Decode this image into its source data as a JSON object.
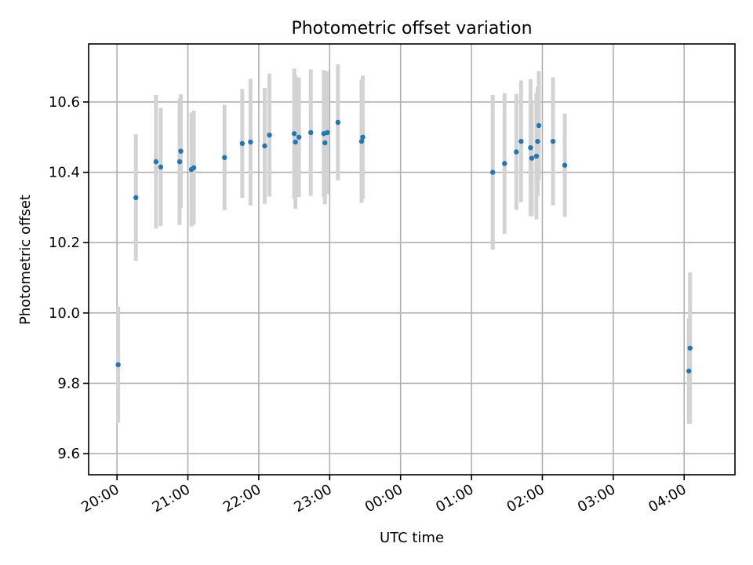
{
  "chart_data": {
    "type": "scatter",
    "title": "Photometric offset variation",
    "xlabel": "UTC time",
    "ylabel": "Photometric offset",
    "x_unit": "UTC hour (hours after 20:00 shown as clock times, wrapping past midnight)",
    "xlim": [
      "19:36",
      "04:43"
    ],
    "ylim": [
      9.54,
      10.765
    ],
    "x_ticks": [
      "20:00",
      "21:00",
      "22:00",
      "23:00",
      "00:00",
      "01:00",
      "02:00",
      "03:00",
      "04:00"
    ],
    "y_ticks": [
      "9.6",
      "9.8",
      "10.0",
      "10.2",
      "10.4",
      "10.6"
    ],
    "grid": true,
    "colors": {
      "points": "#1f77b4",
      "errorbars": "#d3d3d3"
    },
    "points": [
      {
        "t": "20:01",
        "y": 9.853,
        "err": 0.165
      },
      {
        "t": "20:16",
        "y": 10.328,
        "err": 0.18
      },
      {
        "t": "20:33",
        "y": 10.43,
        "err": 0.19
      },
      {
        "t": "20:37",
        "y": 10.415,
        "err": 0.168
      },
      {
        "t": "20:53",
        "y": 10.43,
        "err": 0.18
      },
      {
        "t": "20:54",
        "y": 10.46,
        "err": 0.162
      },
      {
        "t": "21:03",
        "y": 10.408,
        "err": 0.162
      },
      {
        "t": "21:05",
        "y": 10.413,
        "err": 0.162
      },
      {
        "t": "21:31",
        "y": 10.442,
        "err": 0.15
      },
      {
        "t": "21:46",
        "y": 10.482,
        "err": 0.155
      },
      {
        "t": "21:53",
        "y": 10.486,
        "err": 0.18
      },
      {
        "t": "22:05",
        "y": 10.475,
        "err": 0.165
      },
      {
        "t": "22:09",
        "y": 10.506,
        "err": 0.175
      },
      {
        "t": "22:30",
        "y": 10.51,
        "err": 0.185
      },
      {
        "t": "22:31",
        "y": 10.486,
        "err": 0.19
      },
      {
        "t": "22:34",
        "y": 10.5,
        "err": 0.17
      },
      {
        "t": "22:44",
        "y": 10.513,
        "err": 0.18
      },
      {
        "t": "22:55",
        "y": 10.51,
        "err": 0.18
      },
      {
        "t": "22:56",
        "y": 10.484,
        "err": 0.175
      },
      {
        "t": "22:58",
        "y": 10.513,
        "err": 0.175
      },
      {
        "t": "23:07",
        "y": 10.542,
        "err": 0.165
      },
      {
        "t": "23:27",
        "y": 10.488,
        "err": 0.175
      },
      {
        "t": "23:28",
        "y": 10.5,
        "err": 0.175
      },
      {
        "t": "01:18",
        "y": 10.4,
        "err": 0.22
      },
      {
        "t": "01:28",
        "y": 10.425,
        "err": 0.2
      },
      {
        "t": "01:38",
        "y": 10.458,
        "err": 0.165
      },
      {
        "t": "01:42",
        "y": 10.488,
        "err": 0.173
      },
      {
        "t": "01:50",
        "y": 10.47,
        "err": 0.195
      },
      {
        "t": "01:51",
        "y": 10.44,
        "err": 0.165
      },
      {
        "t": "01:55",
        "y": 10.446,
        "err": 0.18
      },
      {
        "t": "01:56",
        "y": 10.488,
        "err": 0.155
      },
      {
        "t": "01:57",
        "y": 10.533,
        "err": 0.155
      },
      {
        "t": "02:09",
        "y": 10.488,
        "err": 0.182
      },
      {
        "t": "02:19",
        "y": 10.42,
        "err": 0.147
      },
      {
        "t": "04:04",
        "y": 9.835,
        "err": 0.15
      },
      {
        "t": "04:05",
        "y": 9.9,
        "err": 0.215
      }
    ]
  }
}
